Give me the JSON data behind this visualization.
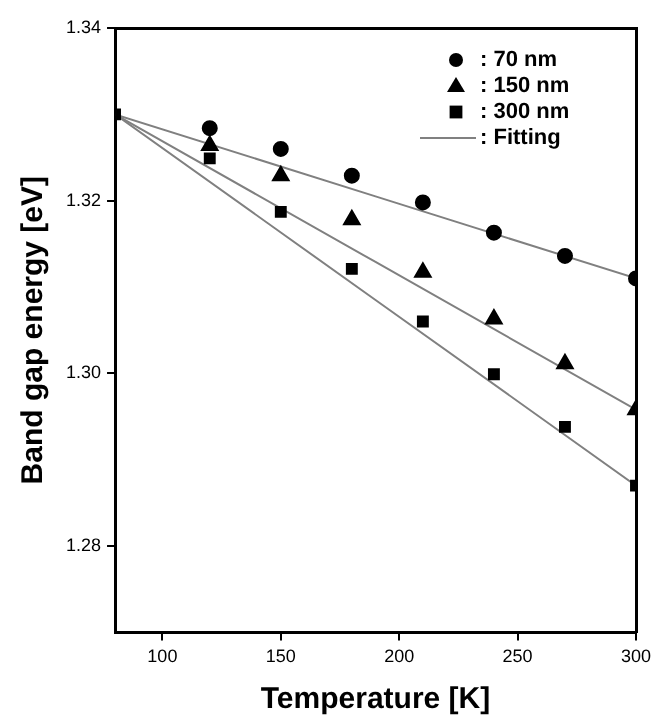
{
  "chart_data": {
    "type": "scatter",
    "xlabel": "Temperature [K]",
    "ylabel": "Band gap energy [eV]",
    "x": [
      80,
      120,
      150,
      180,
      210,
      240,
      270,
      300
    ],
    "series": [
      {
        "name": ": 70 nm",
        "color": "#000000",
        "marker": "circle",
        "x": [
          120,
          150,
          180,
          210,
          240,
          270,
          300
        ],
        "values": [
          1.3284,
          1.326,
          1.3229,
          1.3198,
          1.3163,
          1.3136,
          1.311
        ]
      },
      {
        "name": ": 150 nm",
        "color": "#000000",
        "marker": "triangle",
        "x": [
          120,
          150,
          180,
          210,
          240,
          270,
          300
        ],
        "values": [
          1.3264,
          1.3229,
          1.3178,
          1.3117,
          1.3063,
          1.3011,
          1.2958
        ]
      },
      {
        "name": ": 300 nm",
        "color": "#000000",
        "marker": "square",
        "values": [
          1.33,
          1.3249,
          1.3187,
          1.3121,
          1.306,
          1.2999,
          1.2938,
          1.287
        ]
      },
      {
        "name": ": Fitting",
        "type": "line",
        "color": "#808080",
        "marker": "none",
        "x": [
          80,
          190,
          300
        ],
        "values": [
          1.33,
          1.3205,
          1.311
        ]
      },
      {
        "type": "line",
        "color": "#808080",
        "marker": "none",
        "x": [
          80,
          190,
          300
        ],
        "values": [
          1.33,
          1.3129,
          1.2958
        ]
      },
      {
        "type": "line",
        "color": "#808080",
        "marker": "none",
        "x": [
          80,
          190,
          300
        ],
        "values": [
          1.33,
          1.3085,
          1.287
        ]
      }
    ],
    "xlim": [
      80,
      300
    ],
    "xticks": [
      100,
      150,
      200,
      250,
      300
    ],
    "ylim": [
      1.27,
      1.34
    ],
    "yticks": [
      1.28,
      {
        "value": 1.3,
        "label": "1.30"
      },
      1.32,
      1.34
    ],
    "grid": false,
    "legend": "top right"
  }
}
